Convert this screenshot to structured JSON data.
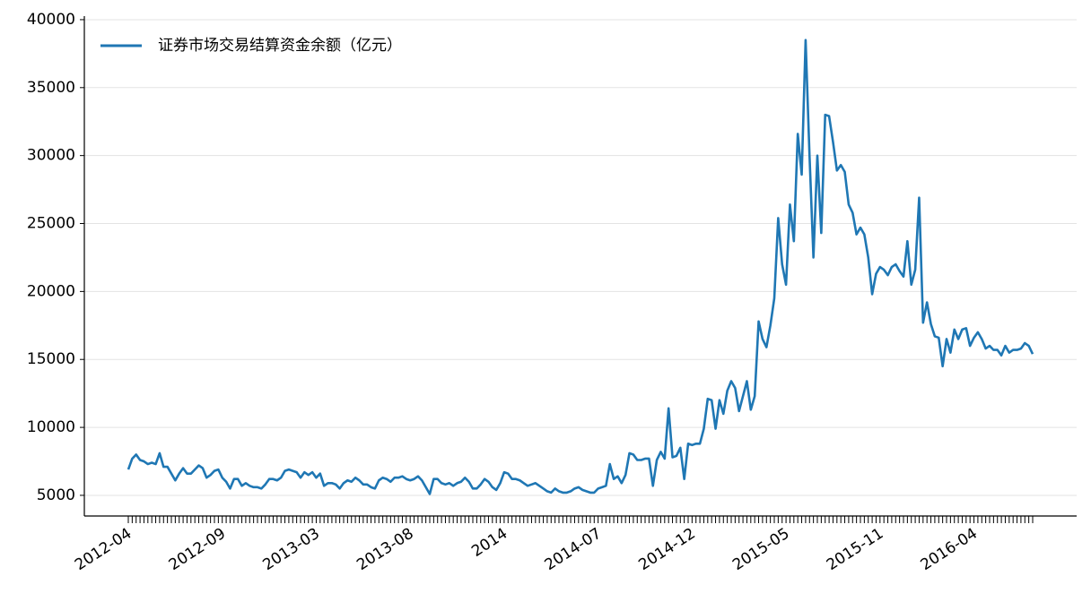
{
  "chart_data": {
    "type": "line",
    "grid": true,
    "legend": "upper left",
    "ylim": [
      3480,
      40260
    ],
    "yticks": [
      5000,
      10000,
      15000,
      20000,
      25000,
      30000,
      35000,
      40000
    ],
    "categories": [
      "2012-04",
      null,
      null,
      null,
      null,
      null,
      null,
      null,
      null,
      null,
      null,
      null,
      null,
      null,
      null,
      null,
      null,
      null,
      null,
      null,
      null,
      null,
      null,
      null,
      "2012-09",
      null,
      null,
      null,
      null,
      null,
      null,
      null,
      null,
      null,
      null,
      null,
      null,
      null,
      null,
      null,
      null,
      null,
      null,
      null,
      null,
      null,
      null,
      null,
      "2013-03",
      null,
      null,
      null,
      null,
      null,
      null,
      null,
      null,
      null,
      null,
      null,
      null,
      null,
      null,
      null,
      null,
      null,
      null,
      null,
      null,
      null,
      null,
      null,
      "2013-08",
      null,
      null,
      null,
      null,
      null,
      null,
      null,
      null,
      null,
      null,
      null,
      null,
      null,
      null,
      null,
      null,
      null,
      null,
      null,
      null,
      null,
      null,
      null,
      "2014",
      null,
      null,
      null,
      null,
      null,
      null,
      null,
      null,
      null,
      null,
      null,
      null,
      null,
      null,
      null,
      null,
      null,
      null,
      null,
      null,
      null,
      null,
      null,
      "2014-07",
      null,
      null,
      null,
      null,
      null,
      null,
      null,
      null,
      null,
      null,
      null,
      null,
      null,
      null,
      null,
      null,
      null,
      null,
      null,
      null,
      null,
      null,
      null,
      "2014-12",
      null,
      null,
      null,
      null,
      null,
      null,
      null,
      null,
      null,
      null,
      null,
      null,
      null,
      null,
      null,
      null,
      null,
      null,
      null,
      null,
      null,
      null,
      null,
      "2015-05",
      null,
      null,
      null,
      null,
      null,
      null,
      null,
      null,
      null,
      null,
      null,
      null,
      null,
      null,
      null,
      null,
      null,
      null,
      null,
      null,
      null,
      null,
      null,
      "2015-11",
      null,
      null,
      null,
      null,
      null,
      null,
      null,
      null,
      null,
      null,
      null,
      null,
      null,
      null,
      null,
      null,
      null,
      null,
      null,
      null,
      null,
      null,
      null,
      "2016-04",
      null,
      null,
      null,
      null,
      null,
      null,
      null,
      null,
      null,
      null,
      null,
      null,
      null,
      null,
      null
    ],
    "series": [
      {
        "name": "证券市场交易结算资金余额（亿元）",
        "color": "#1f77b4",
        "values": [
          6900,
          7700,
          8000,
          7600,
          7500,
          7300,
          7400,
          7300,
          8100,
          7100,
          7100,
          6600,
          6100,
          6600,
          7000,
          6600,
          6600,
          6900,
          7200,
          7000,
          6300,
          6500,
          6800,
          6900,
          6300,
          6000,
          5500,
          6200,
          6200,
          5700,
          5900,
          5700,
          5600,
          5600,
          5500,
          5800,
          6200,
          6200,
          6100,
          6300,
          6800,
          6900,
          6800,
          6700,
          6300,
          6700,
          6500,
          6700,
          6300,
          6600,
          5700,
          5900,
          5900,
          5800,
          5500,
          5900,
          6100,
          6000,
          6300,
          6100,
          5800,
          5800,
          5600,
          5500,
          6100,
          6300,
          6200,
          6000,
          6300,
          6300,
          6400,
          6200,
          6100,
          6200,
          6400,
          6100,
          5600,
          5100,
          6200,
          6200,
          5900,
          5800,
          5900,
          5700,
          5900,
          6000,
          6300,
          6000,
          5500,
          5500,
          5800,
          6200,
          6000,
          5600,
          5400,
          5900,
          6700,
          6600,
          6200,
          6200,
          6100,
          5900,
          5700,
          5800,
          5900,
          5700,
          5500,
          5300,
          5200,
          5500,
          5300,
          5200,
          5200,
          5300,
          5500,
          5600,
          5400,
          5300,
          5200,
          5200,
          5500,
          5600,
          5700,
          7300,
          6200,
          6400,
          5900,
          6500,
          8100,
          8000,
          7600,
          7600,
          7700,
          7700,
          5700,
          7600,
          8200,
          7700,
          11400,
          7800,
          7900,
          8500,
          6200,
          8800,
          8700,
          8800,
          8800,
          9900,
          12100,
          12000,
          9900,
          12000,
          11000,
          12700,
          13400,
          12900,
          11200,
          12300,
          13400,
          11300,
          12300,
          17800,
          16500,
          15900,
          17500,
          19500,
          25400,
          22000,
          20500,
          26400,
          23700,
          31600,
          28600,
          38500,
          30000,
          22500,
          30000,
          24300,
          33000,
          32900,
          31000,
          28900,
          29300,
          28800,
          26400,
          25800,
          24200,
          24700,
          24200,
          22500,
          19800,
          21300,
          21800,
          21600,
          21200,
          21800,
          22000,
          21500,
          21100,
          23700,
          20500,
          21600,
          26900,
          17700,
          19200,
          17600,
          16700,
          16600,
          14500,
          16500,
          15500,
          17200,
          16500,
          17200,
          17300,
          16000,
          16600,
          17000,
          16500,
          15800,
          16000,
          15700,
          15700,
          15300,
          16000,
          15500,
          15700,
          15700,
          15800,
          16200,
          16000,
          15400
        ]
      }
    ]
  }
}
